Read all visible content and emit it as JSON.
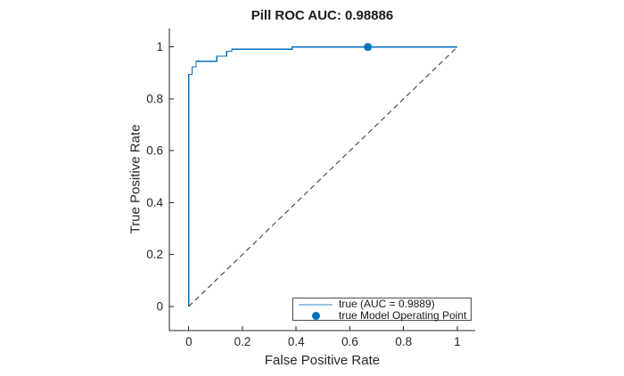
{
  "figure": {
    "background": "#ffffff"
  },
  "chart_data": {
    "type": "line",
    "title": "Pill ROC AUC: 0.98886",
    "xlabel": "False Positive Rate",
    "ylabel": "True Positive Rate",
    "xticks": [
      0,
      0.2,
      0.4,
      0.6,
      0.8,
      1
    ],
    "yticks": [
      0,
      0.2,
      0.4,
      0.6,
      0.8,
      1
    ],
    "xlim": [
      -0.07,
      1.07
    ],
    "ylim": [
      -0.09,
      1.07
    ],
    "grid": false,
    "legend": {
      "position": "inside-bottom-right",
      "entries": [
        {
          "type": "line",
          "label": "true (AUC = 0.9889)"
        },
        {
          "type": "marker",
          "label": "true Model Operating Point"
        }
      ]
    },
    "series": [
      {
        "name": "true (AUC = 0.9889)",
        "type": "roc",
        "points": [
          [
            0,
            0
          ],
          [
            0,
            0.894
          ],
          [
            0.013,
            0.894
          ],
          [
            0.013,
            0.923
          ],
          [
            0.028,
            0.923
          ],
          [
            0.028,
            0.945
          ],
          [
            0.105,
            0.945
          ],
          [
            0.105,
            0.965
          ],
          [
            0.141,
            0.965
          ],
          [
            0.141,
            0.984
          ],
          [
            0.16,
            0.984
          ],
          [
            0.16,
            0.991
          ],
          [
            0.385,
            0.991
          ],
          [
            0.385,
            1.0
          ],
          [
            1.0,
            1.0
          ]
        ]
      },
      {
        "name": "random-classifier-reference",
        "type": "reference",
        "points": [
          [
            0,
            0
          ],
          [
            1,
            1
          ]
        ]
      },
      {
        "name": "true Model Operating Point",
        "type": "operating-point",
        "points": [
          [
            0.667,
            1.0
          ]
        ]
      }
    ],
    "colors": {
      "curve": "#0072BD",
      "marker": "#0072BD",
      "legend_line": "#9cc3e3",
      "reference": "#404040",
      "axis": "#262626",
      "text": "#262626",
      "title_text": "#1a1a1a"
    }
  }
}
